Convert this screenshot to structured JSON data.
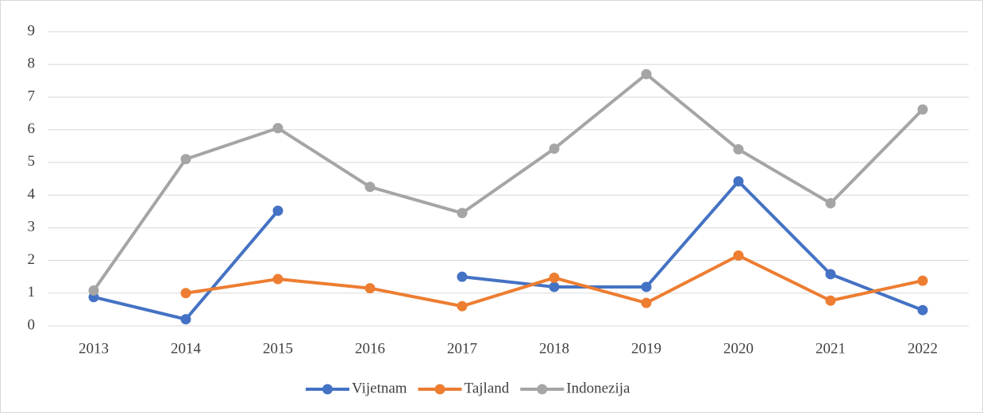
{
  "chart_data": {
    "type": "line",
    "categories": [
      "2013",
      "2014",
      "2015",
      "2016",
      "2017",
      "2018",
      "2019",
      "2020",
      "2021",
      "2022"
    ],
    "series": [
      {
        "name": "Vijetnam",
        "color": "#4472c4",
        "values": [
          0.88,
          0.2,
          3.52,
          null,
          1.5,
          1.19,
          1.19,
          4.42,
          1.58,
          0.48
        ]
      },
      {
        "name": "Tajland",
        "color": "#ed7d31",
        "values": [
          null,
          1.0,
          1.43,
          1.15,
          0.6,
          1.47,
          0.7,
          2.15,
          0.77,
          1.38
        ]
      },
      {
        "name": "Indonezija",
        "color": "#a5a5a5",
        "values": [
          1.08,
          5.1,
          6.05,
          4.25,
          3.45,
          5.42,
          7.7,
          5.4,
          3.75,
          6.62
        ]
      }
    ],
    "ylim": [
      0,
      9
    ],
    "yticks": [
      0,
      1,
      2,
      3,
      4,
      5,
      6,
      7,
      8,
      9
    ],
    "grid": true,
    "legend": "bottom"
  }
}
